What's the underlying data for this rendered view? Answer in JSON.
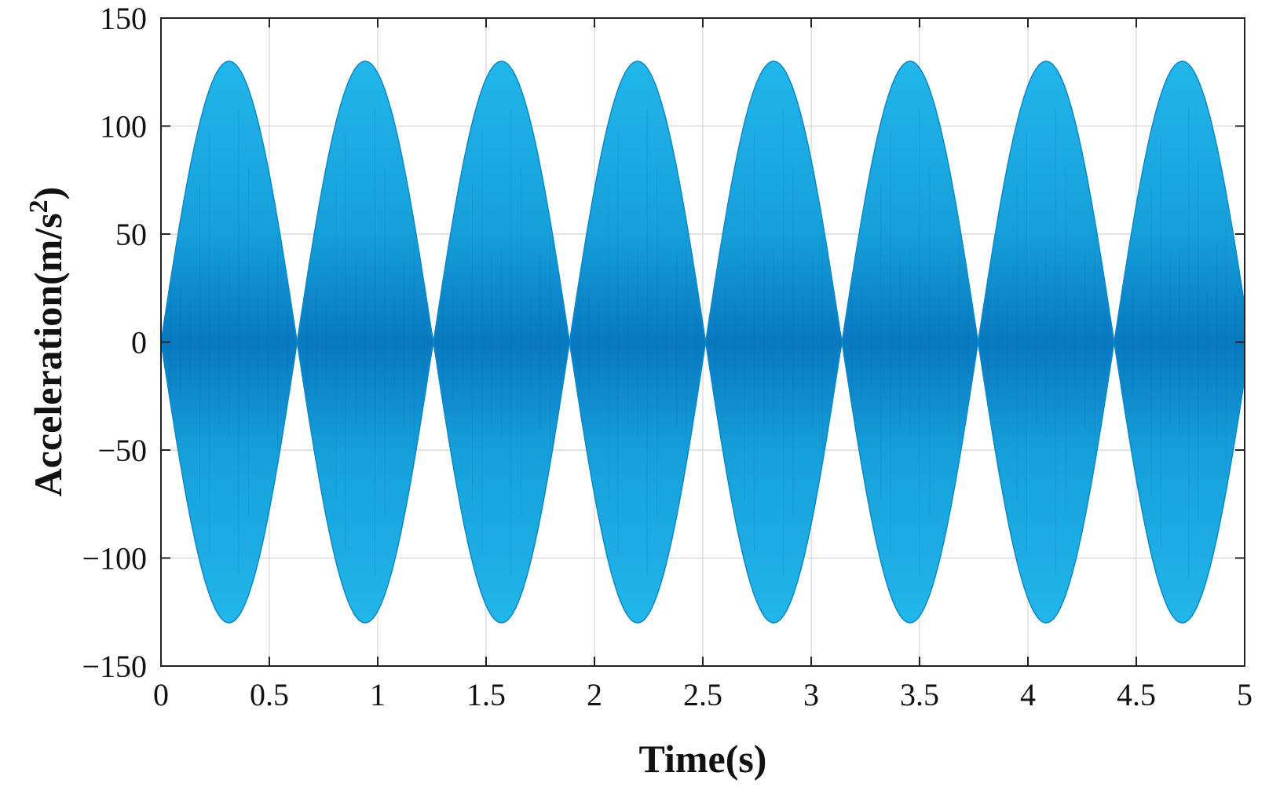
{
  "chart_data": {
    "type": "area",
    "xlabel": "Time(s)",
    "ylabel_main": "Acceleration(m/s",
    "ylabel_sup": "2",
    "ylabel_close": ")",
    "xlim": [
      0,
      5
    ],
    "ylim": [
      -150,
      150
    ],
    "xticks": [
      0,
      0.5,
      1,
      1.5,
      2,
      2.5,
      3,
      3.5,
      4,
      4.5,
      5
    ],
    "xtick_labels": [
      "0",
      "0.5",
      "1",
      "1.5",
      "2",
      "2.5",
      "3",
      "3.5",
      "4",
      "4.5",
      "5"
    ],
    "yticks": [
      150,
      100,
      50,
      0,
      -50,
      -100,
      -150
    ],
    "ytick_labels": [
      "150",
      "100",
      "50",
      "0",
      "−50",
      "−100",
      "−150"
    ],
    "grid": true,
    "series": [
      {
        "envelope_amplitude": 130,
        "envelope_period": 0.628,
        "envelope_peaks_x": [
          0.314,
          0.942,
          1.571,
          2.199,
          2.827,
          3.456,
          4.084,
          4.712
        ],
        "envelope_zeros_x": [
          0,
          0.628,
          1.257,
          1.885,
          2.513,
          3.142,
          3.77,
          4.398,
          5.0
        ]
      }
    ],
    "colors": {
      "fill_light": "#1eb0e6",
      "fill_dark": "#0a7cc4",
      "edge": "#0b88c9"
    }
  }
}
